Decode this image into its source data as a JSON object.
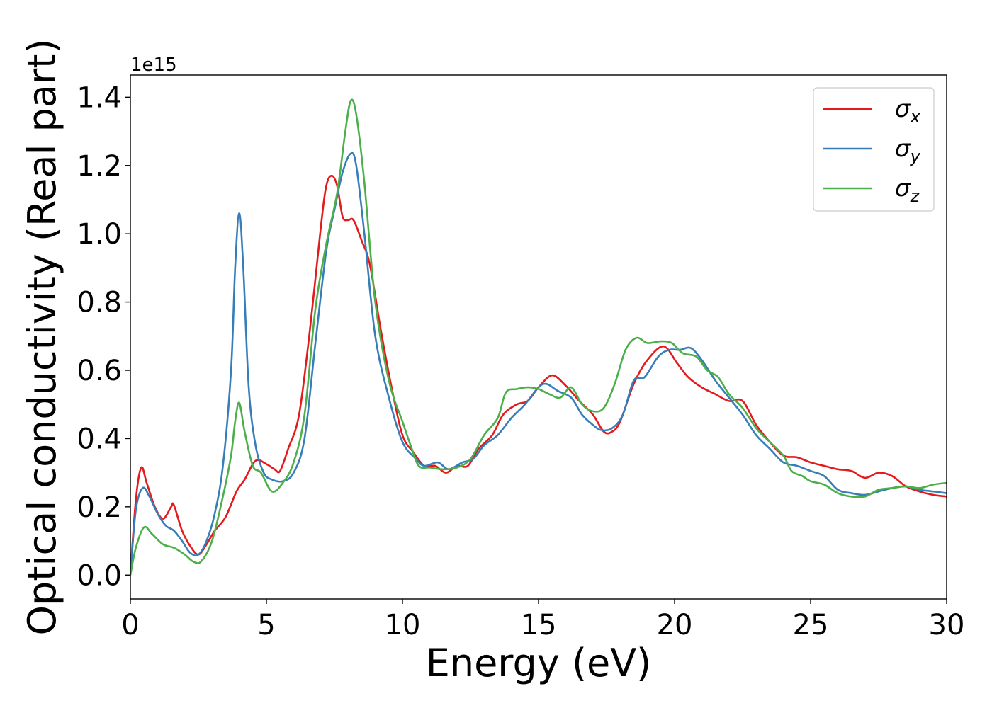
{
  "chart_data": {
    "type": "line",
    "xlabel": "Energy (eV)",
    "ylabel": "Optical conductivity (Real part)",
    "y_offset_label": "1e15",
    "xlim": [
      0,
      30
    ],
    "ylim": [
      -0.07,
      1.465
    ],
    "x_ticks": [
      0,
      5,
      10,
      15,
      20,
      25,
      30
    ],
    "x_tick_labels": [
      "0",
      "5",
      "10",
      "15",
      "20",
      "25",
      "30"
    ],
    "y_ticks": [
      0.0,
      0.2,
      0.4,
      0.6,
      0.8,
      1.0,
      1.2,
      1.4
    ],
    "y_tick_labels": [
      "0.0",
      "0.2",
      "0.4",
      "0.6",
      "0.8",
      "1.0",
      "1.2",
      "1.4"
    ],
    "grid": false,
    "legend_position": "top-right",
    "series": [
      {
        "name": "σx",
        "symbol": "σ",
        "subscript": "x",
        "color": "#e41a1c",
        "points": [
          [
            0,
            0
          ],
          [
            0.2,
            0.22
          ],
          [
            0.4,
            0.315
          ],
          [
            0.6,
            0.27
          ],
          [
            0.9,
            0.2
          ],
          [
            1.2,
            0.165
          ],
          [
            1.5,
            0.2
          ],
          [
            1.6,
            0.205
          ],
          [
            1.9,
            0.13
          ],
          [
            2.2,
            0.085
          ],
          [
            2.5,
            0.06
          ],
          [
            2.8,
            0.09
          ],
          [
            3.1,
            0.13
          ],
          [
            3.5,
            0.17
          ],
          [
            3.9,
            0.245
          ],
          [
            4.2,
            0.28
          ],
          [
            4.6,
            0.335
          ],
          [
            5.0,
            0.325
          ],
          [
            5.3,
            0.31
          ],
          [
            5.5,
            0.305
          ],
          [
            5.8,
            0.37
          ],
          [
            6.2,
            0.47
          ],
          [
            6.6,
            0.72
          ],
          [
            7.0,
            1.02
          ],
          [
            7.2,
            1.14
          ],
          [
            7.4,
            1.17
          ],
          [
            7.6,
            1.14
          ],
          [
            7.8,
            1.05
          ],
          [
            8.0,
            1.04
          ],
          [
            8.2,
            1.04
          ],
          [
            8.5,
            0.98
          ],
          [
            8.8,
            0.91
          ],
          [
            9.2,
            0.72
          ],
          [
            9.6,
            0.55
          ],
          [
            10.0,
            0.41
          ],
          [
            10.4,
            0.36
          ],
          [
            10.8,
            0.32
          ],
          [
            11.2,
            0.32
          ],
          [
            11.6,
            0.3
          ],
          [
            12.0,
            0.32
          ],
          [
            12.4,
            0.32
          ],
          [
            12.8,
            0.37
          ],
          [
            13.3,
            0.41
          ],
          [
            13.7,
            0.47
          ],
          [
            14.2,
            0.5
          ],
          [
            14.6,
            0.51
          ],
          [
            15.0,
            0.55
          ],
          [
            15.5,
            0.585
          ],
          [
            16.0,
            0.555
          ],
          [
            16.5,
            0.51
          ],
          [
            17.0,
            0.47
          ],
          [
            17.4,
            0.42
          ],
          [
            17.7,
            0.42
          ],
          [
            18.0,
            0.45
          ],
          [
            18.5,
            0.56
          ],
          [
            19.0,
            0.63
          ],
          [
            19.6,
            0.67
          ],
          [
            20.1,
            0.62
          ],
          [
            20.5,
            0.58
          ],
          [
            21.0,
            0.55
          ],
          [
            21.5,
            0.53
          ],
          [
            22.0,
            0.51
          ],
          [
            22.5,
            0.51
          ],
          [
            23.0,
            0.44
          ],
          [
            23.5,
            0.39
          ],
          [
            24.0,
            0.35
          ],
          [
            24.5,
            0.345
          ],
          [
            25.0,
            0.33
          ],
          [
            25.5,
            0.32
          ],
          [
            26.0,
            0.31
          ],
          [
            26.5,
            0.305
          ],
          [
            27.0,
            0.285
          ],
          [
            27.5,
            0.3
          ],
          [
            28.0,
            0.29
          ],
          [
            28.5,
            0.26
          ],
          [
            29.0,
            0.245
          ],
          [
            29.5,
            0.235
          ],
          [
            30.0,
            0.23
          ]
        ]
      },
      {
        "name": "σy",
        "symbol": "σ",
        "subscript": "y",
        "color": "#377eb8",
        "points": [
          [
            0,
            0
          ],
          [
            0.2,
            0.19
          ],
          [
            0.45,
            0.255
          ],
          [
            0.7,
            0.23
          ],
          [
            1.0,
            0.18
          ],
          [
            1.3,
            0.145
          ],
          [
            1.6,
            0.13
          ],
          [
            1.9,
            0.1
          ],
          [
            2.2,
            0.065
          ],
          [
            2.5,
            0.06
          ],
          [
            2.8,
            0.1
          ],
          [
            3.1,
            0.18
          ],
          [
            3.4,
            0.32
          ],
          [
            3.7,
            0.6
          ],
          [
            3.85,
            0.9
          ],
          [
            4.0,
            1.06
          ],
          [
            4.15,
            0.9
          ],
          [
            4.35,
            0.55
          ],
          [
            4.6,
            0.38
          ],
          [
            4.9,
            0.3
          ],
          [
            5.2,
            0.28
          ],
          [
            5.6,
            0.275
          ],
          [
            6.0,
            0.3
          ],
          [
            6.4,
            0.4
          ],
          [
            6.8,
            0.68
          ],
          [
            7.2,
            0.95
          ],
          [
            7.5,
            1.07
          ],
          [
            7.8,
            1.18
          ],
          [
            8.1,
            1.235
          ],
          [
            8.3,
            1.2
          ],
          [
            8.6,
            1.0
          ],
          [
            9.0,
            0.7
          ],
          [
            9.5,
            0.52
          ],
          [
            10.0,
            0.39
          ],
          [
            10.5,
            0.34
          ],
          [
            10.8,
            0.32
          ],
          [
            11.3,
            0.33
          ],
          [
            11.7,
            0.31
          ],
          [
            12.2,
            0.33
          ],
          [
            12.6,
            0.34
          ],
          [
            13.0,
            0.38
          ],
          [
            13.5,
            0.41
          ],
          [
            14.0,
            0.46
          ],
          [
            14.5,
            0.5
          ],
          [
            15.0,
            0.55
          ],
          [
            15.3,
            0.56
          ],
          [
            15.7,
            0.54
          ],
          [
            16.2,
            0.52
          ],
          [
            16.6,
            0.47
          ],
          [
            17.0,
            0.44
          ],
          [
            17.3,
            0.425
          ],
          [
            17.7,
            0.43
          ],
          [
            18.1,
            0.47
          ],
          [
            18.5,
            0.57
          ],
          [
            18.9,
            0.58
          ],
          [
            19.4,
            0.64
          ],
          [
            19.8,
            0.66
          ],
          [
            20.2,
            0.66
          ],
          [
            20.6,
            0.665
          ],
          [
            21.0,
            0.63
          ],
          [
            21.5,
            0.57
          ],
          [
            22.0,
            0.52
          ],
          [
            22.5,
            0.47
          ],
          [
            23.0,
            0.41
          ],
          [
            23.5,
            0.37
          ],
          [
            24.0,
            0.33
          ],
          [
            24.5,
            0.32
          ],
          [
            25.0,
            0.305
          ],
          [
            25.5,
            0.29
          ],
          [
            26.0,
            0.25
          ],
          [
            26.5,
            0.24
          ],
          [
            27.0,
            0.235
          ],
          [
            27.5,
            0.245
          ],
          [
            28.0,
            0.255
          ],
          [
            28.5,
            0.26
          ],
          [
            29.0,
            0.25
          ],
          [
            29.5,
            0.245
          ],
          [
            30.0,
            0.24
          ]
        ]
      },
      {
        "name": "σz",
        "symbol": "σ",
        "subscript": "z",
        "color": "#4daf4a",
        "points": [
          [
            0,
            0
          ],
          [
            0.2,
            0.08
          ],
          [
            0.5,
            0.14
          ],
          [
            0.8,
            0.12
          ],
          [
            1.2,
            0.09
          ],
          [
            1.6,
            0.08
          ],
          [
            2.0,
            0.06
          ],
          [
            2.3,
            0.04
          ],
          [
            2.6,
            0.04
          ],
          [
            3.0,
            0.1
          ],
          [
            3.4,
            0.23
          ],
          [
            3.7,
            0.35
          ],
          [
            3.85,
            0.45
          ],
          [
            4.0,
            0.505
          ],
          [
            4.2,
            0.42
          ],
          [
            4.5,
            0.32
          ],
          [
            4.8,
            0.3
          ],
          [
            5.2,
            0.245
          ],
          [
            5.6,
            0.27
          ],
          [
            6.0,
            0.33
          ],
          [
            6.4,
            0.47
          ],
          [
            6.8,
            0.78
          ],
          [
            7.2,
            0.97
          ],
          [
            7.6,
            1.12
          ],
          [
            7.9,
            1.3
          ],
          [
            8.1,
            1.39
          ],
          [
            8.3,
            1.35
          ],
          [
            8.6,
            1.15
          ],
          [
            9.0,
            0.8
          ],
          [
            9.5,
            0.57
          ],
          [
            10.0,
            0.45
          ],
          [
            10.3,
            0.38
          ],
          [
            10.6,
            0.32
          ],
          [
            11.0,
            0.315
          ],
          [
            11.5,
            0.31
          ],
          [
            12.0,
            0.315
          ],
          [
            12.5,
            0.34
          ],
          [
            13.0,
            0.41
          ],
          [
            13.5,
            0.46
          ],
          [
            13.8,
            0.535
          ],
          [
            14.2,
            0.545
          ],
          [
            14.6,
            0.55
          ],
          [
            15.0,
            0.545
          ],
          [
            15.4,
            0.53
          ],
          [
            15.8,
            0.52
          ],
          [
            16.2,
            0.55
          ],
          [
            16.6,
            0.5
          ],
          [
            17.0,
            0.48
          ],
          [
            17.4,
            0.49
          ],
          [
            17.8,
            0.56
          ],
          [
            18.2,
            0.66
          ],
          [
            18.6,
            0.695
          ],
          [
            19.0,
            0.68
          ],
          [
            19.5,
            0.685
          ],
          [
            19.9,
            0.68
          ],
          [
            20.3,
            0.65
          ],
          [
            20.8,
            0.64
          ],
          [
            21.2,
            0.6
          ],
          [
            21.6,
            0.58
          ],
          [
            22.0,
            0.53
          ],
          [
            22.5,
            0.49
          ],
          [
            23.0,
            0.43
          ],
          [
            23.5,
            0.39
          ],
          [
            24.0,
            0.35
          ],
          [
            24.3,
            0.305
          ],
          [
            24.7,
            0.29
          ],
          [
            25.0,
            0.275
          ],
          [
            25.5,
            0.265
          ],
          [
            26.0,
            0.24
          ],
          [
            26.5,
            0.23
          ],
          [
            27.0,
            0.23
          ],
          [
            27.5,
            0.25
          ],
          [
            28.0,
            0.255
          ],
          [
            28.5,
            0.26
          ],
          [
            29.0,
            0.255
          ],
          [
            29.5,
            0.265
          ],
          [
            30.0,
            0.27
          ]
        ]
      }
    ]
  }
}
